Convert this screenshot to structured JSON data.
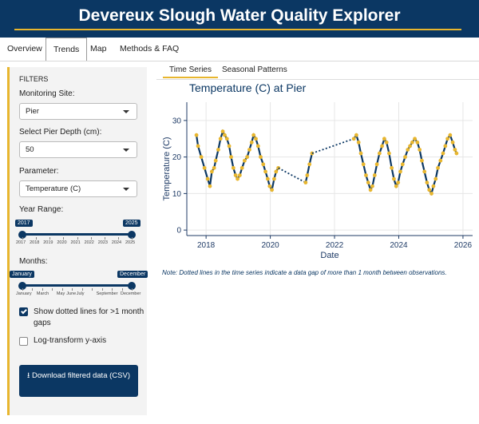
{
  "header": {
    "title": "Devereux Slough Water Quality Explorer"
  },
  "nav": {
    "tabs": [
      {
        "label": "Overview"
      },
      {
        "label": "Trends"
      },
      {
        "label": "Map"
      },
      {
        "label": "Methods & FAQ"
      }
    ]
  },
  "sidebar": {
    "heading": "FILTERS",
    "site_label": "Monitoring Site:",
    "site_value": "Pier",
    "depth_label": "Select Pier Depth (cm):",
    "depth_value": "50",
    "param_label": "Parameter:",
    "param_value": "Temperature (C)",
    "year_label": "Year Range:",
    "year_min": "2017",
    "year_max": "2025",
    "year_ticks": [
      "2017",
      "2018",
      "2019",
      "2020",
      "2021",
      "2022",
      "2023",
      "2024",
      "2025"
    ],
    "months_label": "Months:",
    "month_min": "January",
    "month_max": "December",
    "month_ticks": [
      "January",
      "March",
      "May",
      "June",
      "July",
      "September",
      "December"
    ],
    "dotted_label": "Show dotted lines for >1 month gaps",
    "dotted_checked": true,
    "log_label": "Log-transform y-axis",
    "log_checked": false,
    "download_label": "Download filtered data (CSV)"
  },
  "main": {
    "subtabs": [
      {
        "label": "Time Series"
      },
      {
        "label": "Seasonal Patterns"
      }
    ],
    "plot_title": "Temperature (C) at Pier",
    "note": "Note: Dotted lines in the time series indicate a data gap of more than 1 month between observations."
  },
  "colors": {
    "navy": "#0b3763",
    "gold": "#e8b62e"
  },
  "chart_data": {
    "type": "line",
    "xlabel": "Date",
    "ylabel": "Temperature (C)",
    "xlim": [
      2017.4,
      2026.3
    ],
    "ylim": [
      -1.5,
      35
    ],
    "xticks": [
      2018,
      2020,
      2022,
      2024,
      2026
    ],
    "yticks": [
      0,
      10,
      20,
      30
    ],
    "series": [
      {
        "values": [
          [
            2017.7,
            26
          ],
          [
            2017.75,
            23
          ],
          [
            2017.85,
            20
          ],
          [
            2017.95,
            17
          ],
          [
            2018.05,
            14
          ],
          [
            2018.12,
            12
          ],
          [
            2018.18,
            16
          ],
          [
            2018.25,
            17
          ],
          [
            2018.3,
            19
          ],
          [
            2018.38,
            22
          ],
          [
            2018.45,
            25
          ],
          [
            2018.52,
            27
          ],
          [
            2018.58,
            26
          ],
          [
            2018.65,
            25
          ],
          [
            2018.72,
            23
          ],
          [
            2018.78,
            20
          ],
          [
            2018.85,
            17
          ],
          [
            2018.92,
            15
          ],
          [
            2018.98,
            14
          ],
          [
            2019.05,
            15
          ],
          [
            2019.12,
            17
          ],
          [
            2019.2,
            19
          ],
          [
            2019.28,
            20
          ],
          [
            2019.35,
            22
          ],
          [
            2019.42,
            24
          ],
          [
            2019.48,
            26
          ],
          [
            2019.55,
            25
          ],
          [
            2019.62,
            23
          ],
          [
            2019.7,
            20
          ],
          [
            2019.78,
            18
          ],
          [
            2019.85,
            16
          ],
          [
            2019.92,
            14
          ],
          [
            2019.98,
            12
          ],
          [
            2020.05,
            11
          ],
          [
            2020.12,
            14
          ],
          [
            2020.18,
            16
          ],
          [
            2020.25,
            17
          ]
        ],
        "gap": false
      },
      {
        "values": [
          [
            2020.25,
            17
          ],
          [
            2021.1,
            13
          ]
        ],
        "gap": true
      },
      {
        "values": [
          [
            2021.1,
            13
          ],
          [
            2021.15,
            15
          ],
          [
            2021.22,
            18
          ],
          [
            2021.3,
            21
          ]
        ],
        "gap": false
      },
      {
        "values": [
          [
            2021.3,
            21
          ],
          [
            2022.6,
            25
          ]
        ],
        "gap": true
      },
      {
        "values": [
          [
            2022.6,
            25
          ],
          [
            2022.68,
            26
          ],
          [
            2022.75,
            24
          ],
          [
            2022.82,
            21
          ],
          [
            2022.9,
            18
          ],
          [
            2022.98,
            15
          ],
          [
            2023.05,
            13
          ],
          [
            2023.12,
            11
          ],
          [
            2023.18,
            12
          ],
          [
            2023.25,
            15
          ],
          [
            2023.32,
            18
          ],
          [
            2023.4,
            21
          ],
          [
            2023.48,
            23
          ],
          [
            2023.55,
            25
          ],
          [
            2023.62,
            24
          ],
          [
            2023.7,
            21
          ],
          [
            2023.78,
            17
          ],
          [
            2023.85,
            14
          ],
          [
            2023.92,
            12
          ],
          [
            2023.98,
            13
          ],
          [
            2024.05,
            16
          ],
          [
            2024.12,
            18
          ],
          [
            2024.2,
            20
          ],
          [
            2024.28,
            22
          ],
          [
            2024.35,
            23
          ],
          [
            2024.42,
            24
          ],
          [
            2024.5,
            25
          ],
          [
            2024.58,
            24
          ],
          [
            2024.65,
            22
          ],
          [
            2024.72,
            19
          ],
          [
            2024.8,
            16
          ],
          [
            2024.88,
            13
          ],
          [
            2024.95,
            11
          ],
          [
            2025.02,
            10
          ],
          [
            2025.08,
            12
          ],
          [
            2025.15,
            14
          ],
          [
            2025.22,
            17
          ],
          [
            2025.3,
            19
          ],
          [
            2025.38,
            21
          ],
          [
            2025.45,
            23
          ],
          [
            2025.52,
            25
          ],
          [
            2025.6,
            26
          ],
          [
            2025.68,
            24
          ],
          [
            2025.75,
            22
          ],
          [
            2025.8,
            21
          ]
        ],
        "gap": false
      }
    ]
  }
}
